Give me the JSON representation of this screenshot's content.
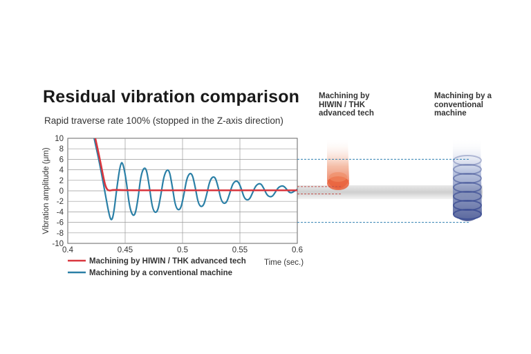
{
  "title": "Residual vibration comparison",
  "subtitle": "Rapid traverse rate 100% (stopped in the Z-axis direction)",
  "captions": {
    "left": "Machining by\nHIWIN / THK\nadvanced tech",
    "right": "Machining by a\nconventional\nmachine"
  },
  "colors": {
    "hiwin": "#d9363e",
    "conventional": "#2a7fa6",
    "grid": "#999999",
    "dashed": "#2f7fb0",
    "red_dashed": "#c0504d"
  },
  "chart_data": {
    "type": "line",
    "xlabel": "Time (sec.)",
    "ylabel": "Vibration amplitude (μm)",
    "xlim": [
      0.4,
      0.6
    ],
    "ylim": [
      -10,
      10
    ],
    "x_ticks": [
      "0.4",
      "0.45",
      "0.5",
      "0.55",
      "0.6"
    ],
    "y_ticks": [
      "10",
      "8",
      "6",
      "4",
      "2",
      "0",
      "-2",
      "-4",
      "-6",
      "-8",
      "-10"
    ],
    "grid": true,
    "legend_position": "bottom-left",
    "series": [
      {
        "name": "Machining by HIWIN / THK advanced tech",
        "color": "#d9363e",
        "x": [
          0.424,
          0.428,
          0.432,
          0.434,
          0.436,
          0.44,
          0.45,
          0.5,
          0.55,
          0.6
        ],
        "y": [
          10,
          6,
          1.5,
          0.3,
          0,
          0.2,
          0.1,
          0.1,
          0.1,
          0.1
        ]
      },
      {
        "name": "Machining by a conventional machine",
        "color": "#2a7fa6",
        "x": [
          0.423,
          0.428,
          0.433,
          0.436,
          0.438,
          0.44,
          0.443,
          0.446,
          0.448,
          0.451,
          0.454,
          0.458,
          0.461,
          0.464,
          0.468,
          0.471,
          0.474,
          0.478,
          0.481,
          0.484,
          0.488,
          0.491,
          0.494,
          0.498,
          0.501,
          0.504,
          0.508,
          0.511,
          0.514,
          0.518,
          0.521,
          0.524,
          0.528,
          0.531,
          0.534,
          0.538,
          0.541,
          0.544,
          0.548,
          0.551,
          0.554,
          0.558,
          0.561,
          0.564,
          0.568,
          0.571,
          0.574,
          0.578,
          0.581,
          0.584,
          0.588,
          0.591,
          0.594,
          0.598,
          0.6
        ],
        "y": [
          10,
          5,
          -1,
          -4.5,
          -5.8,
          -4.5,
          1,
          5.3,
          5.4,
          2,
          -3.5,
          -5.2,
          -2,
          3.5,
          4.8,
          1,
          -3.8,
          -4.3,
          -1,
          3.2,
          4.4,
          1,
          -3.3,
          -3.8,
          -1,
          2.8,
          3.6,
          0.8,
          -2.8,
          -3.1,
          -0.8,
          2.2,
          2.9,
          0.8,
          -2.2,
          -2.5,
          -0.6,
          1.6,
          2,
          0.6,
          -1.6,
          -1.8,
          -0.4,
          1.1,
          1.5,
          0.4,
          -1,
          -1.2,
          -0.2,
          0.8,
          1,
          0.2,
          -0.5,
          0,
          0.3
        ]
      }
    ]
  }
}
